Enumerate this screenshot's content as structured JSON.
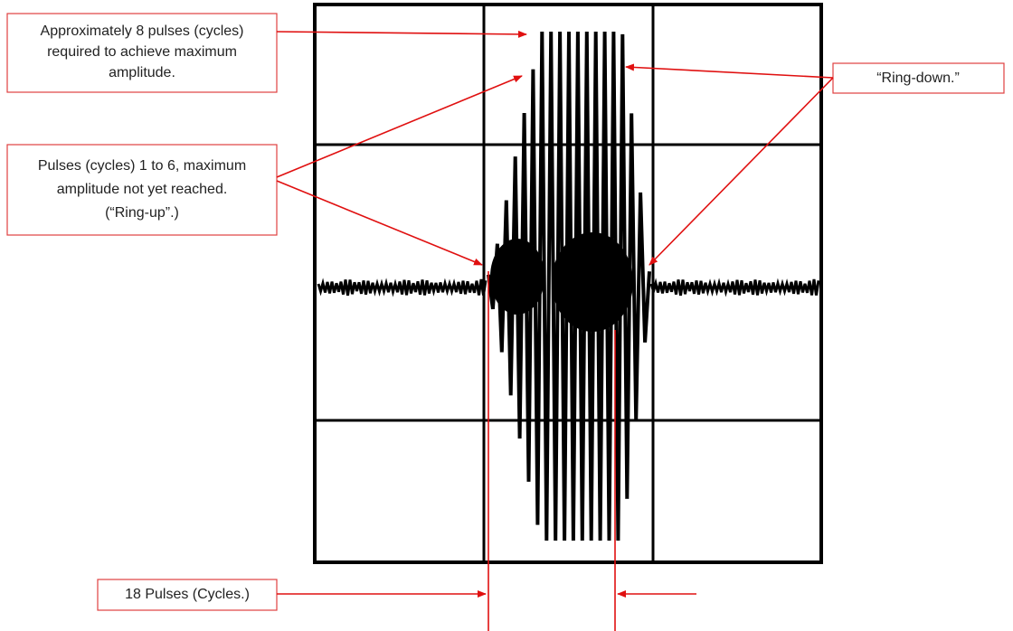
{
  "annotations": [
    {
      "lines": [
        "Approximately 8 pulses (cycles)",
        "required to achieve maximum",
        "amplitude."
      ]
    },
    {
      "lines": [
        "Pulses (cycles) 1 to 6, maximum",
        "amplitude not yet reached.",
        "(“Ring-up”.)"
      ]
    },
    {
      "lines": [
        "“Ring-down.”"
      ]
    },
    {
      "lines": [
        "18 Pulses (Cycles.)"
      ]
    }
  ]
}
